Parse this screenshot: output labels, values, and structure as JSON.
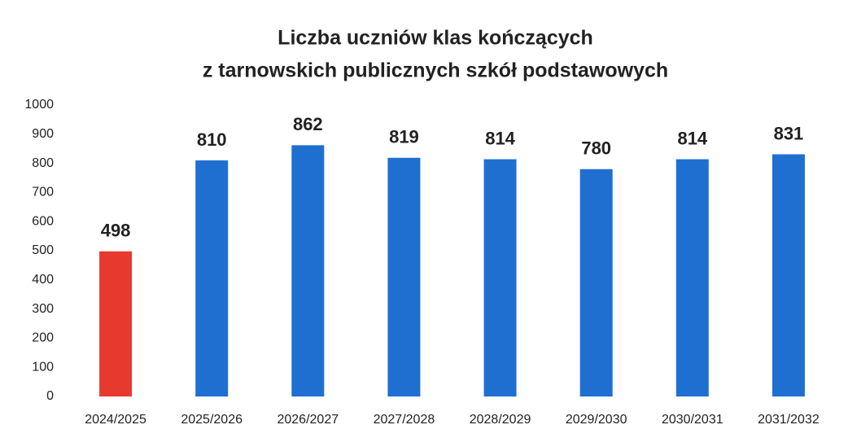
{
  "chart_data": {
    "type": "bar",
    "title": [
      "Liczba uczniów klas kończących",
      "z tarnowskich publicznych szkół podstawowych"
    ],
    "categories": [
      "2024/2025",
      "2025/2026",
      "2026/2027",
      "2027/2028",
      "2028/2029",
      "2029/2030",
      "2030/2031",
      "2031/2032"
    ],
    "values": [
      498,
      810,
      862,
      819,
      814,
      780,
      814,
      831
    ],
    "colors": [
      "#e8392f",
      "#1f6fd1",
      "#1f6fd1",
      "#1f6fd1",
      "#1f6fd1",
      "#1f6fd1",
      "#1f6fd1",
      "#1f6fd1"
    ],
    "ylim": [
      0,
      1000
    ],
    "yticks": [
      0,
      100,
      200,
      300,
      400,
      500,
      600,
      700,
      800,
      900,
      1000
    ],
    "grid": false
  }
}
